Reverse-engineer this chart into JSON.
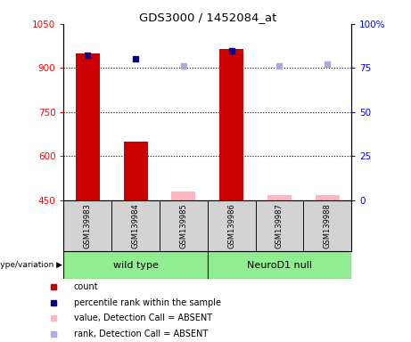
{
  "title": "GDS3000 / 1452084_at",
  "samples": [
    "GSM139983",
    "GSM139984",
    "GSM139985",
    "GSM139986",
    "GSM139987",
    "GSM139988"
  ],
  "count_present": {
    "indices": [
      0,
      1,
      3
    ],
    "values": [
      950,
      650,
      965
    ]
  },
  "value_absent": {
    "indices": [
      2,
      4,
      5
    ],
    "values": [
      480,
      467,
      467
    ]
  },
  "rank_present": {
    "indices": [
      0,
      1,
      3
    ],
    "values": [
      82,
      80,
      85
    ]
  },
  "rank_absent": {
    "indices": [
      2,
      4,
      5
    ],
    "values": [
      76,
      76,
      77
    ]
  },
  "ylim_left": [
    450,
    1050
  ],
  "ylim_right": [
    0,
    100
  ],
  "yticks_left": [
    450,
    600,
    750,
    900,
    1050
  ],
  "yticks_right": [
    0,
    25,
    50,
    75,
    100
  ],
  "bar_width": 0.5,
  "bar_color_present": "#CC0000",
  "bar_color_absent": "#FFB6C1",
  "dot_color_present": "#00008B",
  "dot_color_absent": "#AAAADD",
  "label_count": "count",
  "label_rank": "percentile rank within the sample",
  "label_value_absent": "value, Detection Call = ABSENT",
  "label_rank_absent": "rank, Detection Call = ABSENT",
  "wt_group_color": "#90EE90",
  "nd_group_color": "#90EE90",
  "sample_bg_color": "#D3D3D3"
}
